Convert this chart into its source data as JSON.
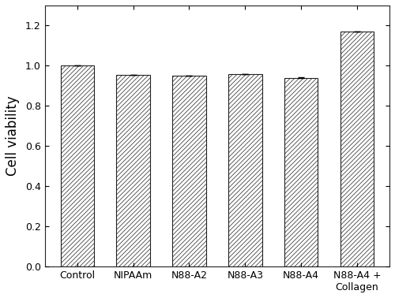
{
  "categories": [
    "Control",
    "NIPAAm",
    "N88-A2",
    "N88-A3",
    "N88-A4",
    "N88-A4 +\nCollagen"
  ],
  "values": [
    1.0,
    0.955,
    0.95,
    0.96,
    0.94,
    1.17
  ],
  "errors": [
    0.0,
    0.0004,
    0.0012,
    0.0001,
    0.0016,
    0.0003
  ],
  "ylabel": "Cell viability",
  "ylim": [
    0.0,
    1.3
  ],
  "yticks": [
    0.0,
    0.2,
    0.4,
    0.6,
    0.8,
    1.0,
    1.2
  ],
  "bar_color": "#ffffff",
  "bar_edgecolor": "#222222",
  "hatch_pattern": "//////",
  "figsize": [
    5.0,
    3.78
  ],
  "dpi": 100,
  "bar_width": 0.6
}
